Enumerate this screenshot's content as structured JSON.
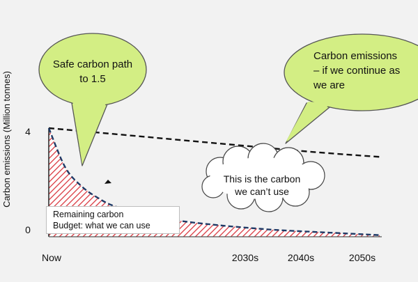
{
  "chart_data": {
    "type": "line",
    "ylabel": "Carbon emissions (Million tonnes)",
    "yticks": [
      {
        "value": 4,
        "label": "4"
      },
      {
        "value": 0,
        "label": "0"
      }
    ],
    "xticks": [
      "Now",
      "2030s",
      "2040s",
      "2050s"
    ],
    "series": [
      {
        "name": "Carbon emissions – if we continue as we are",
        "style": "dashed",
        "color": "#111111",
        "x": [
          0,
          1,
          2,
          3,
          4,
          5
        ],
        "y": [
          4.0,
          3.78,
          3.56,
          3.34,
          3.12,
          2.94
        ]
      },
      {
        "name": "Safe carbon path to 1.5",
        "style": "dashed",
        "color": "#1f3a66",
        "x": [
          0,
          0.25,
          0.5,
          0.75,
          1,
          1.5,
          2,
          2.5,
          3,
          3.5,
          4,
          4.5,
          5
        ],
        "y": [
          4.0,
          2.55,
          1.85,
          1.42,
          1.12,
          0.78,
          0.58,
          0.44,
          0.33,
          0.24,
          0.18,
          0.12,
          0.06
        ]
      }
    ],
    "shaded_area": {
      "under": "Safe carbon path to 1.5",
      "fill": "#d9363e",
      "pattern": "diagonal-hatch"
    },
    "xlim": [
      0,
      5
    ],
    "ylim": [
      0,
      4.5
    ]
  },
  "callouts": {
    "safe_path": [
      "Safe carbon path",
      "to 1.5"
    ],
    "continue": [
      "Carbon emissions",
      "– if we continue as",
      "we are"
    ],
    "cant_use": [
      "This is the carbon",
      "we can’t use"
    ]
  },
  "remaining_box": [
    "Remaining carbon",
    "Budget: what we can use"
  ],
  "colors": {
    "bubble_fill": "#d3ee84",
    "bubble_stroke": "#555555",
    "cloud_fill": "#ffffff",
    "hatch": "#d9363e",
    "background": "#f2f2f2"
  }
}
